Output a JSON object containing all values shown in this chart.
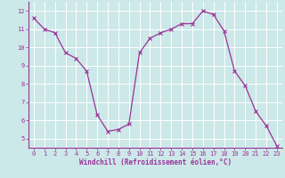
{
  "x": [
    0,
    1,
    2,
    3,
    4,
    5,
    6,
    7,
    8,
    9,
    10,
    11,
    12,
    13,
    14,
    15,
    16,
    17,
    18,
    19,
    20,
    21,
    22,
    23
  ],
  "y": [
    11.6,
    11.0,
    10.8,
    9.7,
    9.4,
    8.7,
    6.3,
    5.4,
    5.5,
    5.8,
    9.7,
    10.5,
    10.8,
    11.0,
    11.3,
    11.3,
    12.0,
    11.8,
    10.9,
    8.7,
    7.9,
    6.5,
    5.7,
    4.6
  ],
  "line_color": "#993399",
  "marker": "x",
  "marker_size": 3,
  "marker_linewidth": 0.8,
  "linewidth": 0.9,
  "xlabel": "Windchill (Refroidissement éolien,°C)",
  "xlim_min": -0.5,
  "xlim_max": 23.5,
  "ylim_min": 4.5,
  "ylim_max": 12.5,
  "yticks": [
    5,
    6,
    7,
    8,
    9,
    10,
    11,
    12
  ],
  "xticks": [
    0,
    1,
    2,
    3,
    4,
    5,
    6,
    7,
    8,
    9,
    10,
    11,
    12,
    13,
    14,
    15,
    16,
    17,
    18,
    19,
    20,
    21,
    22,
    23
  ],
  "bg_color": "#cce8e8",
  "grid_color": "#ffffff",
  "tick_label_color": "#993399",
  "axis_label_color": "#993399",
  "tick_fontsize": 5.0,
  "xlabel_fontsize": 5.5
}
